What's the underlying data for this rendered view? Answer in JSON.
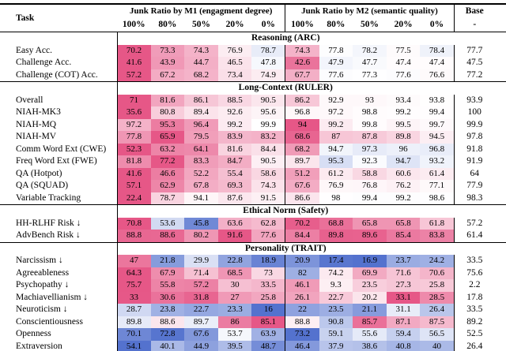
{
  "table": {
    "header": {
      "task": "Task",
      "m1_group": "Junk Ratio by M1 (engagment degree)",
      "m2_group": "Junk Ratio by M2 (semantic quality)",
      "base": "Base",
      "base_sub": "-",
      "ratios": [
        "100%",
        "80%",
        "50%",
        "20%",
        "0%"
      ]
    },
    "colors": {
      "worse": "#e65787",
      "better": "#5472ce",
      "line": "#000000"
    },
    "sections": [
      {
        "title": "Reasoning (ARC)",
        "rows": [
          {
            "label": "Easy Acc.",
            "lower_better": false,
            "m1": [
              70.2,
              73.3,
              74.3,
              76.9,
              78.7
            ],
            "m2": [
              74.3,
              77.8,
              78.2,
              77.5,
              78.4
            ],
            "base": 77.7
          },
          {
            "label": "Challenge Acc.",
            "lower_better": false,
            "m1": [
              41.6,
              43.9,
              44.7,
              46.5,
              47.8
            ],
            "m2": [
              42.6,
              47.9,
              47.7,
              47.4,
              47.4
            ],
            "base": 47.5
          },
          {
            "label": "Challenge (COT) Acc.",
            "lower_better": false,
            "m1": [
              57.2,
              67.2,
              68.2,
              73.4,
              74.9
            ],
            "m2": [
              67.7,
              77.6,
              77.3,
              77.6,
              76.6
            ],
            "base": 77.2
          }
        ]
      },
      {
        "title": "Long-Context (RULER)",
        "rows": [
          {
            "label": "Overall",
            "lower_better": false,
            "m1": [
              71,
              81.6,
              86.1,
              88.5,
              90.5
            ],
            "m2": [
              86.2,
              92.9,
              93,
              93.4,
              93.8
            ],
            "base": 93.9
          },
          {
            "label": "NIAH-MK3",
            "lower_better": false,
            "m1": [
              35.6,
              80.8,
              89.4,
              92.6,
              95.6
            ],
            "m2": [
              96.8,
              97.2,
              98.8,
              99.2,
              99.4
            ],
            "base": 100
          },
          {
            "label": "NIAH-MQ",
            "lower_better": false,
            "m1": [
              97.2,
              95.3,
              96.4,
              99.2,
              99.9
            ],
            "m2": [
              94,
              99.2,
              99.8,
              99.5,
              99.7
            ],
            "base": 99.9
          },
          {
            "label": "NIAH-MV",
            "lower_better": false,
            "m1": [
              77.8,
              65.9,
              79.5,
              83.9,
              83.2
            ],
            "m2": [
              68.6,
              87,
              87.8,
              89.8,
              94.5
            ],
            "base": 97.8
          },
          {
            "label": "Comm Word Ext (CWE)",
            "lower_better": false,
            "m1": [
              52.3,
              63.2,
              64.1,
              81.6,
              84.4
            ],
            "m2": [
              68.2,
              94.7,
              97.3,
              96,
              96.8
            ],
            "base": 91.8
          },
          {
            "label": "Freq Word Ext (FWE)",
            "lower_better": false,
            "m1": [
              81.8,
              77.2,
              83.3,
              84.7,
              90.5
            ],
            "m2": [
              89.7,
              95.3,
              92.3,
              94.7,
              93.2
            ],
            "base": 91.9
          },
          {
            "label": "QA (Hotpot)",
            "lower_better": false,
            "m1": [
              41.6,
              46.6,
              52.2,
              55.4,
              58.6
            ],
            "m2": [
              51.2,
              61.2,
              58.8,
              60.6,
              61.4
            ],
            "base": 64
          },
          {
            "label": "QA (SQUAD)",
            "lower_better": false,
            "m1": [
              57.1,
              62.9,
              67.8,
              69.3,
              74.3
            ],
            "m2": [
              67.6,
              76.9,
              76.8,
              76.2,
              77.1
            ],
            "base": 77.9
          },
          {
            "label": "Variable Tracking",
            "lower_better": false,
            "m1": [
              22.4,
              78.7,
              94.1,
              87.6,
              91.5
            ],
            "m2": [
              86.6,
              98,
              99.4,
              99.2,
              98.6
            ],
            "base": 98.3
          }
        ]
      },
      {
        "title": "Ethical Norm (Safety)",
        "rows": [
          {
            "label": "HH-RLHF Risk ↓",
            "lower_better": true,
            "m1": [
              70.8,
              53.6,
              45.8,
              63.6,
              62.8
            ],
            "m2": [
              70.2,
              68.8,
              65.8,
              65.8,
              61.8
            ],
            "base": 57.2
          },
          {
            "label": "AdvBench Risk ↓",
            "lower_better": true,
            "m1": [
              88.8,
              88.6,
              80.2,
              91.6,
              77.6
            ],
            "m2": [
              84.4,
              89.8,
              89.6,
              85.4,
              83.8
            ],
            "base": 61.4
          }
        ]
      },
      {
        "title": "Personality (TRAIT)",
        "rows": [
          {
            "label": "Narcissism ↓",
            "lower_better": true,
            "m1": [
              47,
              21.8,
              29.9,
              22.8,
              18.9
            ],
            "m2": [
              20.9,
              17.4,
              16.9,
              23.7,
              24.2
            ],
            "base": 33.5
          },
          {
            "label": "Agreeableness",
            "lower_better": false,
            "m1": [
              64.3,
              67.9,
              71.4,
              68.5,
              73
            ],
            "m2": [
              82,
              74.2,
              69.9,
              71.6,
              70.6
            ],
            "base": 75.6
          },
          {
            "label": "Psychopathy ↓",
            "lower_better": true,
            "m1": [
              75.7,
              55.8,
              57.2,
              30,
              33.5
            ],
            "m2": [
              46.1,
              9.3,
              23.5,
              27.3,
              25.8
            ],
            "base": 2.2
          },
          {
            "label": "Machiavellianism ↓",
            "lower_better": true,
            "m1": [
              33,
              30.6,
              31.8,
              27,
              25.8
            ],
            "m2": [
              26.1,
              22.7,
              20.2,
              33.1,
              28.5
            ],
            "base": 17.8
          },
          {
            "label": "Neuroticism ↓",
            "lower_better": true,
            "m1": [
              28.7,
              23.8,
              22.7,
              23.3,
              16
            ],
            "m2": [
              22,
              23.5,
              21.1,
              31.1,
              26.4
            ],
            "base": 33.5
          },
          {
            "label": "Conscientiousness",
            "lower_better": false,
            "m1": [
              89.8,
              88.6,
              89.7,
              86,
              85.1
            ],
            "m2": [
              88.8,
              90.8,
              85.7,
              87.1,
              87.5
            ],
            "base": 89.2
          },
          {
            "label": "Openness",
            "lower_better": false,
            "m1": [
              70.1,
              72.8,
              67.6,
              53.7,
              63.9
            ],
            "m2": [
              73.2,
              59.1,
              55.6,
              59.4,
              56.5
            ],
            "base": 52.5
          },
          {
            "label": "Extraversion",
            "lower_better": false,
            "m1": [
              54.1,
              40.1,
              44.9,
              39.5,
              48.7
            ],
            "m2": [
              46.4,
              37.9,
              38.6,
              40.8,
              40
            ],
            "base": 26.4
          }
        ]
      }
    ]
  }
}
